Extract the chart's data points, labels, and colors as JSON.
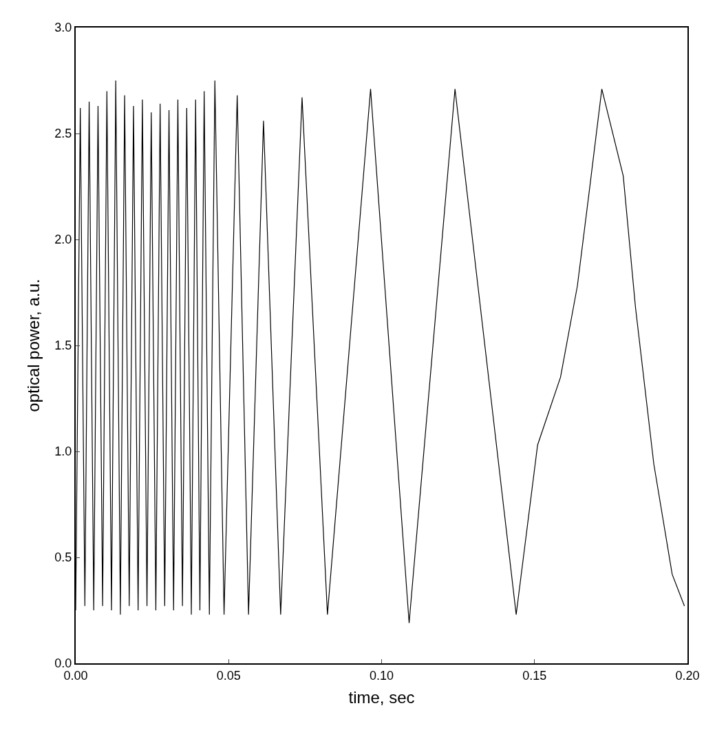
{
  "chart_data": {
    "type": "line",
    "xlabel": "time, sec",
    "ylabel": "optical power, a.u.",
    "x": [
      0.0,
      0.0015,
      0.003,
      0.0044,
      0.0059,
      0.0073,
      0.0088,
      0.0102,
      0.0117,
      0.0131,
      0.0146,
      0.016,
      0.0175,
      0.0189,
      0.0204,
      0.0218,
      0.0233,
      0.0247,
      0.0262,
      0.0276,
      0.0291,
      0.0305,
      0.032,
      0.0334,
      0.0349,
      0.0363,
      0.0378,
      0.0392,
      0.0406,
      0.042,
      0.0437,
      0.0455,
      0.0485,
      0.0528,
      0.0565,
      0.0614,
      0.067,
      0.074,
      0.0823,
      0.0964,
      0.109,
      0.124,
      0.144,
      0.151,
      0.1585,
      0.164,
      0.168,
      0.172,
      0.179,
      0.183,
      0.189,
      0.195,
      0.199
    ],
    "series": [
      {
        "color": "#000000",
        "values": [
          0.25,
          2.62,
          0.27,
          2.65,
          0.25,
          2.63,
          0.27,
          2.7,
          0.25,
          2.75,
          0.23,
          2.68,
          0.27,
          2.63,
          0.25,
          2.66,
          0.27,
          2.6,
          0.25,
          2.64,
          0.27,
          2.61,
          0.25,
          2.66,
          0.27,
          2.62,
          0.23,
          2.66,
          0.25,
          2.7,
          0.23,
          2.75,
          0.23,
          2.68,
          0.23,
          2.56,
          0.23,
          2.67,
          0.23,
          2.71,
          0.19,
          2.71,
          0.23,
          1.03,
          1.35,
          1.78,
          2.24,
          2.71,
          2.3,
          1.68,
          0.94,
          0.42,
          0.27
        ]
      }
    ],
    "xlim": [
      0,
      0.2
    ],
    "ylim": [
      0,
      3
    ],
    "xticks": [
      {
        "value": 0,
        "label": "0.00"
      },
      {
        "value": 0.05,
        "label": "0.05"
      },
      {
        "value": 0.1,
        "label": "0.10"
      },
      {
        "value": 0.15,
        "label": "0.15"
      },
      {
        "value": 0.2,
        "label": "0.20"
      }
    ],
    "yticks": [
      {
        "value": 0,
        "label": "0.0"
      },
      {
        "value": 0.5,
        "label": "0.5"
      },
      {
        "value": 1,
        "label": "1.0"
      },
      {
        "value": 1.5,
        "label": "1.5"
      },
      {
        "value": 2,
        "label": "2.0"
      },
      {
        "value": 2.5,
        "label": "2.5"
      },
      {
        "value": 3,
        "label": "3.0"
      }
    ],
    "marker": "none",
    "line_style": "solid"
  }
}
